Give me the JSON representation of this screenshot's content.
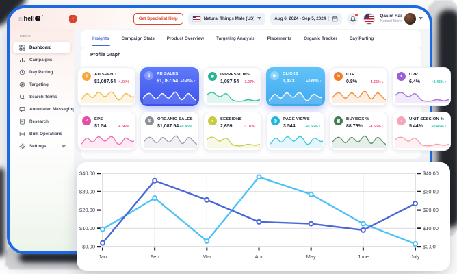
{
  "logo": {
    "part1": "ai",
    "part2": "hell",
    "o_sparkle": "✦",
    "tail_star": "✦"
  },
  "topbar": {
    "collapse_glyph": "‹",
    "help_button": "Get Specialist Help",
    "account_label": "Natural Things Male (US)",
    "date_range": "Aug 6, 2024 - Sep 5, 2024",
    "user_name": "Qasim Rai",
    "user_store": "Natural Store"
  },
  "sidebar": {
    "section_label": "MENU",
    "items": [
      {
        "label": "Dashboard",
        "active": true
      },
      {
        "label": "Campaigns",
        "active": false
      },
      {
        "label": "Day Parting",
        "active": false
      },
      {
        "label": "Targeting",
        "active": false
      },
      {
        "label": "Search Terms",
        "active": false
      },
      {
        "label": "Automated Messaging",
        "active": false
      },
      {
        "label": "Research",
        "active": false
      },
      {
        "label": "Bulk Operations",
        "active": false
      },
      {
        "label": "Settings",
        "active": false,
        "has_chevron": true
      }
    ]
  },
  "tabs": {
    "active_index": 0,
    "items": [
      {
        "label": "Insights"
      },
      {
        "label": "Campaign Stats"
      },
      {
        "label": "Product Overview"
      },
      {
        "label": "Targeting Analysis"
      },
      {
        "label": "Placements"
      },
      {
        "label": "Organic Tracker"
      },
      {
        "label": "Day Parting"
      }
    ]
  },
  "section_title": "Profile Graph",
  "colors": {
    "window_border": "#1B6AE3",
    "accent_blue": "#4A67DA",
    "sky_blue": "#4DC2F5",
    "negative": "#F43F6E",
    "positive": "#16BFA4",
    "help_red": "#D9442C"
  },
  "cards": [
    {
      "label": "AD SPEND",
      "value": "$1,087.54",
      "change": "-4.66% ↓",
      "change_color": "#F43F6E",
      "glyph": "$",
      "icon_bg": "#F5A93B",
      "spark": "#F2B63C",
      "selected": false
    },
    {
      "label": "AD SALES",
      "value": "$1,087.54",
      "change": "+0.45% ↑",
      "change_color": "#FFFFFF",
      "glyph": "$",
      "icon_bg": "rgba(255,255,255,0.28)",
      "spark": "#FFFFFF",
      "selected": true,
      "bg1": "#5E7BFA",
      "bg2": "#3D52EC"
    },
    {
      "label": "IMPRESSIONS",
      "value": "1,087.54",
      "change": "-1.07% ↓",
      "change_color": "#F43F6E",
      "glyph": "◉",
      "icon_bg": "#27B591",
      "spark": "#36C2A0",
      "selected": false
    },
    {
      "label": "CLICKS",
      "value": "1,423",
      "change": "+0.66% ↑",
      "change_color": "#FFFFFF",
      "glyph": "▶",
      "icon_bg": "rgba(255,255,255,0.32)",
      "spark": "#FFFFFF",
      "selected": true,
      "bg1": "#61C3F8",
      "bg2": "#3FA9EF"
    },
    {
      "label": "CTR",
      "value": "0.8%",
      "change": "-4.66% ↓",
      "change_color": "#F43F6E",
      "glyph": "%",
      "icon_bg": "#F07B28",
      "spark": "#F08A3C",
      "selected": false
    },
    {
      "label": "CVR",
      "value": "6.4%",
      "change": "+0.45% ↑",
      "change_color": "#16BFA4",
      "glyph": "+",
      "icon_bg": "#9C5FD6",
      "spark": "#A473DE",
      "selected": false
    },
    {
      "label": "EPS",
      "value": "$1.54",
      "change": "-4.66% ↓",
      "change_color": "#F43F6E",
      "glyph": "✓",
      "icon_bg": "#E44FA0",
      "spark": "#EF6FB8",
      "selected": false
    },
    {
      "label": "ORGANIC SALES",
      "value": "$1,087.54",
      "change": "+0.45% ↑",
      "change_color": "#16BFA4",
      "glyph": "$",
      "icon_bg": "#8A9097",
      "spark": "#9AA1A9",
      "selected": false
    },
    {
      "label": "SESSIONS",
      "value": "2,659",
      "change": "-1.07% ↓",
      "change_color": "#F43F6E",
      "glyph": "●",
      "icon_bg": "#C6CC3F",
      "spark": "#C9CF55",
      "selected": false
    },
    {
      "label": "PAGE VIEWS",
      "value": "3.544",
      "change": "+0.66% ↑",
      "change_color": "#16BFA4",
      "glyph": "◎",
      "icon_bg": "#23B6DC",
      "spark": "#3FC4E2",
      "selected": false
    },
    {
      "label": "BUYBOX %",
      "value": "88.76%",
      "change": "-4.66% ↓",
      "change_color": "#F43F6E",
      "glyph": "▣",
      "icon_bg": "#3F7D55",
      "spark": "#53906B",
      "selected": false
    },
    {
      "label": "UNIT SESSION %",
      "value": "5.44%",
      "change": "+0.45% ↑",
      "change_color": "#16BFA4",
      "glyph": "○",
      "icon_bg": "#F4A7B9",
      "spark": "#F4A2B1",
      "selected": false
    }
  ],
  "chart_data": {
    "type": "line",
    "categories": [
      "Jan",
      "Feb",
      "Mar",
      "Apr",
      "May",
      "June",
      "July"
    ],
    "series": [
      {
        "name": "series-light-blue",
        "color": "#4DC2F5",
        "values": [
          9.5,
          26.5,
          3,
          38,
          28.5,
          12.5,
          1.5
        ]
      },
      {
        "name": "series-royal-blue",
        "color": "#4A67DA",
        "values": [
          2,
          36,
          25.5,
          13.5,
          12.5,
          9,
          23.5
        ]
      }
    ],
    "ylim": [
      0,
      40
    ],
    "yticks": [
      0,
      10,
      20,
      30,
      40
    ],
    "ytick_labels": [
      "$0.00",
      "$10.00",
      "$20.00",
      "$30.00",
      "$40.00"
    ],
    "grid": true,
    "dual_axis_labels": true,
    "legend": "none",
    "title": ""
  }
}
